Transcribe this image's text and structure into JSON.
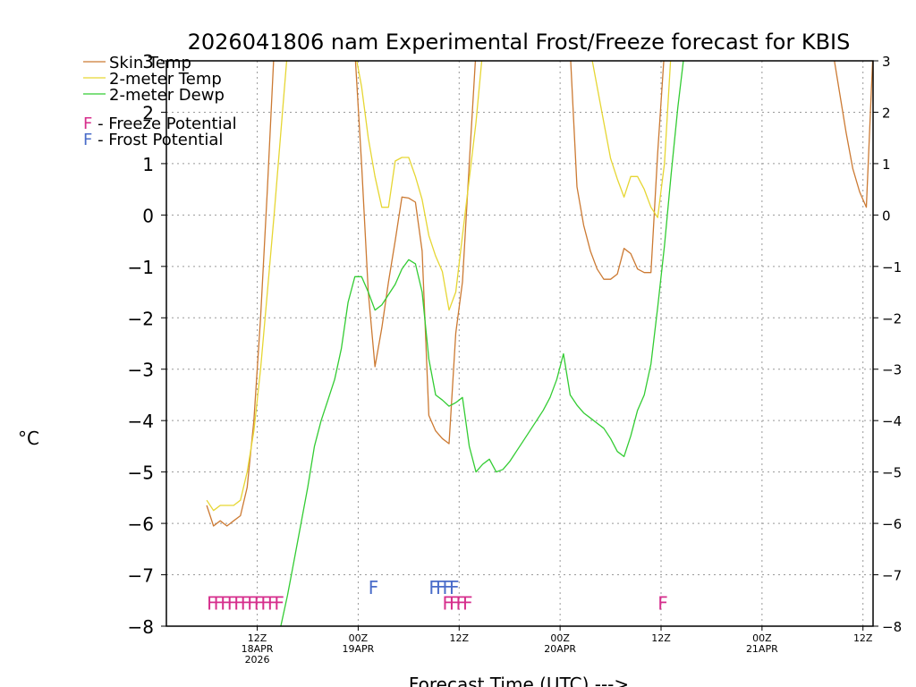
{
  "chart_data": {
    "type": "line",
    "title": "2026041806 nam Experimental Frost/Freeze forecast for KBIS",
    "xlabel": "Forecast Time (UTC) --->",
    "ylabel": "°C",
    "ylim": [
      -8,
      3
    ],
    "xlim": [
      -6,
      99
    ],
    "y_ticks": [
      -8,
      -7,
      -6,
      -5,
      -4,
      -3,
      -2,
      -1,
      0,
      1,
      2,
      3
    ],
    "x_ticks": [
      {
        "h": 7.5,
        "lines": [
          "12Z",
          "18APR",
          "2026"
        ]
      },
      {
        "h": 22.5,
        "lines": [
          "00Z",
          "19APR"
        ]
      },
      {
        "h": 37.5,
        "lines": [
          "12Z"
        ]
      },
      {
        "h": 52.5,
        "lines": [
          "00Z",
          "20APR"
        ]
      },
      {
        "h": 67.5,
        "lines": [
          "12Z"
        ]
      },
      {
        "h": 82.5,
        "lines": [
          "00Z",
          "21APR"
        ]
      },
      {
        "h": 97.5,
        "lines": [
          "12Z"
        ]
      }
    ],
    "legend": [
      {
        "label": "Skin Temp",
        "color": "#cc7a33"
      },
      {
        "label": "2-meter Temp",
        "color": "#e6d633"
      },
      {
        "label": "2-meter Dewp",
        "color": "#33cc33"
      }
    ],
    "legend_notes": [
      {
        "glyph": "F",
        "text": " - Freeze Potential",
        "color": "#d62e8c"
      },
      {
        "glyph": "F",
        "text": " - Frost Potential",
        "color": "#4a6cc9"
      }
    ],
    "series": [
      {
        "name": "Skin Temp",
        "color": "#cc7a33",
        "points": [
          [
            0,
            -5.65
          ],
          [
            1,
            -6.05
          ],
          [
            2,
            -5.95
          ],
          [
            3,
            -6.05
          ],
          [
            4,
            -5.95
          ],
          [
            5,
            -5.85
          ],
          [
            6,
            -5.3
          ],
          [
            7,
            -4.0
          ],
          [
            8,
            -2.0
          ],
          [
            9,
            0.5
          ],
          [
            10,
            3.2
          ],
          [
            22,
            3.2
          ],
          [
            23,
            1.0
          ],
          [
            24,
            -1.5
          ],
          [
            25,
            -2.95
          ],
          [
            26,
            -2.2
          ],
          [
            27,
            -1.3
          ],
          [
            28,
            -0.5
          ],
          [
            29,
            0.35
          ],
          [
            30,
            0.33
          ],
          [
            31,
            0.25
          ],
          [
            32,
            -0.7
          ],
          [
            33,
            -3.9
          ],
          [
            34,
            -4.2
          ],
          [
            35,
            -4.35
          ],
          [
            36,
            -4.45
          ],
          [
            37,
            -2.3
          ],
          [
            38,
            -1.3
          ],
          [
            39,
            1.0
          ],
          [
            40,
            3.2
          ],
          [
            54,
            3.2
          ],
          [
            55,
            0.55
          ],
          [
            56,
            -0.2
          ],
          [
            57,
            -0.7
          ],
          [
            58,
            -1.05
          ],
          [
            59,
            -1.25
          ],
          [
            60,
            -1.25
          ],
          [
            61,
            -1.15
          ],
          [
            62,
            -0.65
          ],
          [
            63,
            -0.75
          ],
          [
            64,
            -1.05
          ],
          [
            65,
            -1.12
          ],
          [
            66,
            -1.12
          ],
          [
            67,
            1.2
          ],
          [
            68,
            3.2
          ],
          [
            93,
            3.2
          ],
          [
            94,
            2.4
          ],
          [
            95,
            1.6
          ],
          [
            96,
            0.9
          ],
          [
            97,
            0.45
          ],
          [
            98,
            0.15
          ],
          [
            99,
            3.2
          ]
        ]
      },
      {
        "name": "2-meter Temp",
        "color": "#e6d633",
        "points": [
          [
            0,
            -5.55
          ],
          [
            1,
            -5.75
          ],
          [
            2,
            -5.65
          ],
          [
            3,
            -5.65
          ],
          [
            4,
            -5.65
          ],
          [
            5,
            -5.55
          ],
          [
            6,
            -5.0
          ],
          [
            7,
            -4.2
          ],
          [
            8,
            -3.0
          ],
          [
            9,
            -1.5
          ],
          [
            10,
            0.0
          ],
          [
            11,
            1.6
          ],
          [
            12,
            3.2
          ],
          [
            22,
            3.2
          ],
          [
            23,
            2.5
          ],
          [
            24,
            1.5
          ],
          [
            25,
            0.75
          ],
          [
            26,
            0.15
          ],
          [
            27,
            0.15
          ],
          [
            28,
            1.05
          ],
          [
            29,
            1.12
          ],
          [
            30,
            1.12
          ],
          [
            31,
            0.75
          ],
          [
            32,
            0.3
          ],
          [
            33,
            -0.4
          ],
          [
            34,
            -0.8
          ],
          [
            35,
            -1.1
          ],
          [
            36,
            -1.85
          ],
          [
            37,
            -1.5
          ],
          [
            38,
            -0.4
          ],
          [
            39,
            0.7
          ],
          [
            40,
            1.8
          ],
          [
            41,
            3.2
          ],
          [
            57,
            3.2
          ],
          [
            58,
            2.5
          ],
          [
            59,
            1.8
          ],
          [
            60,
            1.1
          ],
          [
            61,
            0.7
          ],
          [
            62,
            0.35
          ],
          [
            63,
            0.75
          ],
          [
            64,
            0.75
          ],
          [
            65,
            0.5
          ],
          [
            66,
            0.15
          ],
          [
            67,
            -0.05
          ],
          [
            68,
            1.0
          ],
          [
            69,
            3.2
          ]
        ]
      },
      {
        "name": "2-meter Dewp",
        "color": "#33cc33",
        "points": [
          [
            11,
            -8.0
          ],
          [
            12,
            -7.4
          ],
          [
            13,
            -6.7
          ],
          [
            14,
            -6.0
          ],
          [
            15,
            -5.3
          ],
          [
            16,
            -4.5
          ],
          [
            17,
            -4.0
          ],
          [
            18,
            -3.6
          ],
          [
            19,
            -3.2
          ],
          [
            20,
            -2.6
          ],
          [
            21,
            -1.7
          ],
          [
            22,
            -1.2
          ],
          [
            23,
            -1.2
          ],
          [
            24,
            -1.5
          ],
          [
            25,
            -1.85
          ],
          [
            26,
            -1.75
          ],
          [
            27,
            -1.55
          ],
          [
            28,
            -1.35
          ],
          [
            29,
            -1.05
          ],
          [
            30,
            -0.87
          ],
          [
            31,
            -0.95
          ],
          [
            32,
            -1.5
          ],
          [
            33,
            -2.8
          ],
          [
            34,
            -3.5
          ],
          [
            35,
            -3.6
          ],
          [
            36,
            -3.72
          ],
          [
            37,
            -3.65
          ],
          [
            38,
            -3.55
          ],
          [
            39,
            -4.5
          ],
          [
            40,
            -5.0
          ],
          [
            41,
            -4.85
          ],
          [
            42,
            -4.75
          ],
          [
            43,
            -5.0
          ],
          [
            44,
            -4.95
          ],
          [
            45,
            -4.8
          ],
          [
            46,
            -4.6
          ],
          [
            47,
            -4.4
          ],
          [
            48,
            -4.2
          ],
          [
            49,
            -4.0
          ],
          [
            50,
            -3.8
          ],
          [
            51,
            -3.55
          ],
          [
            52,
            -3.2
          ],
          [
            53,
            -2.7
          ],
          [
            54,
            -3.5
          ],
          [
            55,
            -3.7
          ],
          [
            56,
            -3.85
          ],
          [
            57,
            -3.95
          ],
          [
            58,
            -4.05
          ],
          [
            59,
            -4.15
          ],
          [
            60,
            -4.35
          ],
          [
            61,
            -4.6
          ],
          [
            62,
            -4.7
          ],
          [
            63,
            -4.3
          ],
          [
            64,
            -3.8
          ],
          [
            65,
            -3.5
          ],
          [
            66,
            -2.9
          ],
          [
            67,
            -1.8
          ],
          [
            68,
            -0.6
          ],
          [
            69,
            0.8
          ],
          [
            70,
            2.1
          ],
          [
            71,
            3.2
          ]
        ]
      }
    ],
    "potentials": [
      {
        "type": "Freeze",
        "color": "#d62e8c",
        "y": -7.5,
        "hours": [
          0,
          1,
          2,
          3,
          4,
          5,
          6,
          7,
          8,
          9,
          10,
          35,
          36,
          37,
          38,
          67
        ]
      },
      {
        "type": "Frost",
        "color": "#4a6cc9",
        "y": -7.2,
        "hours": [
          24,
          33,
          34,
          35,
          36
        ]
      }
    ]
  }
}
